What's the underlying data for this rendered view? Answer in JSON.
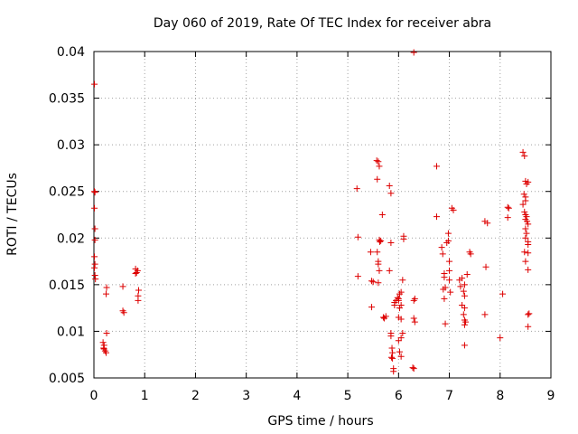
{
  "chart_data": {
    "type": "scatter",
    "title": "Day 060 of 2019, Rate Of TEC Index for receiver abra",
    "xlabel": "GPS time / hours",
    "ylabel": "ROTI / TECUs",
    "xlim": [
      0,
      9
    ],
    "ylim": [
      0.005,
      0.04
    ],
    "x_ticks": [
      0,
      1,
      2,
      3,
      4,
      5,
      6,
      7,
      8,
      9
    ],
    "y_ticks": [
      0.005,
      0.01,
      0.015,
      0.02,
      0.025,
      0.03,
      0.035,
      0.04
    ],
    "x_tick_labels": [
      "0",
      "1",
      "2",
      "3",
      "4",
      "5",
      "6",
      "7",
      "8",
      "9"
    ],
    "y_tick_labels": [
      "0.005",
      "0.01",
      "0.015",
      "0.02",
      "0.025",
      "0.03",
      "0.035",
      "0.04"
    ],
    "grid": true,
    "marker": "plus",
    "color": "#dd0000",
    "series": [
      {
        "name": "ROTI",
        "points": [
          [
            0.01,
            0.0365
          ],
          [
            0.01,
            0.025
          ],
          [
            0.02,
            0.0249
          ],
          [
            0.01,
            0.0232
          ],
          [
            0.02,
            0.021
          ],
          [
            0.02,
            0.0198
          ],
          [
            0.01,
            0.018
          ],
          [
            0.02,
            0.0172
          ],
          [
            0.01,
            0.0168
          ],
          [
            0.02,
            0.016
          ],
          [
            0.03,
            0.0156
          ],
          [
            0.18,
            0.0088
          ],
          [
            0.2,
            0.0085
          ],
          [
            0.19,
            0.0082
          ],
          [
            0.22,
            0.0079
          ],
          [
            0.24,
            0.0077
          ],
          [
            0.2,
            0.0081
          ],
          [
            0.25,
            0.0098
          ],
          [
            0.25,
            0.0147
          ],
          [
            0.24,
            0.014
          ],
          [
            0.57,
            0.0148
          ],
          [
            0.57,
            0.0122
          ],
          [
            0.59,
            0.012
          ],
          [
            0.82,
            0.0167
          ],
          [
            0.84,
            0.0163
          ],
          [
            0.86,
            0.0165
          ],
          [
            0.82,
            0.0162
          ],
          [
            0.88,
            0.0144
          ],
          [
            0.87,
            0.0138
          ],
          [
            0.87,
            0.0133
          ],
          [
            5.18,
            0.0253
          ],
          [
            5.2,
            0.0201
          ],
          [
            5.2,
            0.0159
          ],
          [
            5.45,
            0.0185
          ],
          [
            5.47,
            0.0154
          ],
          [
            5.5,
            0.0153
          ],
          [
            5.47,
            0.0126
          ],
          [
            5.57,
            0.0283
          ],
          [
            5.6,
            0.0282
          ],
          [
            5.62,
            0.0277
          ],
          [
            5.58,
            0.0263
          ],
          [
            5.58,
            0.0185
          ],
          [
            5.6,
            0.0175
          ],
          [
            5.62,
            0.0198
          ],
          [
            5.63,
            0.0196
          ],
          [
            5.65,
            0.0197
          ],
          [
            5.6,
            0.0172
          ],
          [
            5.62,
            0.0165
          ],
          [
            5.6,
            0.0152
          ],
          [
            5.68,
            0.0225
          ],
          [
            5.7,
            0.0115
          ],
          [
            5.72,
            0.0114
          ],
          [
            5.75,
            0.0116
          ],
          [
            5.82,
            0.0256
          ],
          [
            5.85,
            0.0248
          ],
          [
            5.85,
            0.0195
          ],
          [
            5.82,
            0.0165
          ],
          [
            5.85,
            0.0098
          ],
          [
            5.85,
            0.0095
          ],
          [
            5.87,
            0.0082
          ],
          [
            5.88,
            0.0077
          ],
          [
            5.86,
            0.0072
          ],
          [
            5.88,
            0.0071
          ],
          [
            5.9,
            0.006
          ],
          [
            5.9,
            0.0057
          ],
          [
            5.92,
            0.0128
          ],
          [
            5.92,
            0.0131
          ],
          [
            5.95,
            0.0133
          ],
          [
            5.98,
            0.0136
          ],
          [
            6.0,
            0.0133
          ],
          [
            6.0,
            0.0135
          ],
          [
            6.02,
            0.014
          ],
          [
            6.05,
            0.0142
          ],
          [
            6.05,
            0.0128
          ],
          [
            6.02,
            0.0125
          ],
          [
            6.0,
            0.0115
          ],
          [
            6.05,
            0.0113
          ],
          [
            6.08,
            0.0155
          ],
          [
            6.1,
            0.0202
          ],
          [
            6.1,
            0.0199
          ],
          [
            6.08,
            0.0098
          ],
          [
            6.05,
            0.0093
          ],
          [
            6.0,
            0.009
          ],
          [
            6.02,
            0.0078
          ],
          [
            6.05,
            0.0073
          ],
          [
            6.3,
            0.0399
          ],
          [
            6.3,
            0.0133
          ],
          [
            6.32,
            0.0135
          ],
          [
            6.3,
            0.0114
          ],
          [
            6.32,
            0.011
          ],
          [
            6.28,
            0.0061
          ],
          [
            6.3,
            0.006
          ],
          [
            6.75,
            0.0277
          ],
          [
            6.75,
            0.0223
          ],
          [
            6.85,
            0.019
          ],
          [
            6.87,
            0.0183
          ],
          [
            6.9,
            0.0162
          ],
          [
            6.9,
            0.0158
          ],
          [
            6.92,
            0.0147
          ],
          [
            6.88,
            0.0145
          ],
          [
            6.9,
            0.0135
          ],
          [
            6.92,
            0.0108
          ],
          [
            6.95,
            0.0195
          ],
          [
            6.98,
            0.0205
          ],
          [
            6.98,
            0.0197
          ],
          [
            7.0,
            0.0175
          ],
          [
            7.0,
            0.0165
          ],
          [
            7.0,
            0.0155
          ],
          [
            7.02,
            0.0142
          ],
          [
            7.05,
            0.0232
          ],
          [
            7.08,
            0.023
          ],
          [
            7.2,
            0.0155
          ],
          [
            7.25,
            0.0157
          ],
          [
            7.22,
            0.0148
          ],
          [
            7.3,
            0.015
          ],
          [
            7.28,
            0.0143
          ],
          [
            7.3,
            0.0138
          ],
          [
            7.25,
            0.0128
          ],
          [
            7.3,
            0.0125
          ],
          [
            7.28,
            0.0118
          ],
          [
            7.3,
            0.0112
          ],
          [
            7.32,
            0.011
          ],
          [
            7.3,
            0.0107
          ],
          [
            7.3,
            0.0085
          ],
          [
            7.4,
            0.0185
          ],
          [
            7.42,
            0.0183
          ],
          [
            7.35,
            0.0161
          ],
          [
            7.7,
            0.0218
          ],
          [
            7.75,
            0.0216
          ],
          [
            7.72,
            0.0169
          ],
          [
            7.7,
            0.0118
          ],
          [
            8.0,
            0.0093
          ],
          [
            8.05,
            0.014
          ],
          [
            8.15,
            0.0233
          ],
          [
            8.17,
            0.0232
          ],
          [
            8.15,
            0.0222
          ],
          [
            8.45,
            0.0292
          ],
          [
            8.48,
            0.0288
          ],
          [
            8.5,
            0.0261
          ],
          [
            8.52,
            0.0258
          ],
          [
            8.55,
            0.026
          ],
          [
            8.47,
            0.0247
          ],
          [
            8.5,
            0.0244
          ],
          [
            8.5,
            0.024
          ],
          [
            8.45,
            0.0236
          ],
          [
            8.48,
            0.0228
          ],
          [
            8.5,
            0.0225
          ],
          [
            8.52,
            0.0223
          ],
          [
            8.5,
            0.022
          ],
          [
            8.53,
            0.0218
          ],
          [
            8.55,
            0.0215
          ],
          [
            8.5,
            0.021
          ],
          [
            8.52,
            0.0205
          ],
          [
            8.5,
            0.02
          ],
          [
            8.55,
            0.0196
          ],
          [
            8.55,
            0.0193
          ],
          [
            8.48,
            0.0185
          ],
          [
            8.55,
            0.0184
          ],
          [
            8.5,
            0.0175
          ],
          [
            8.55,
            0.0166
          ],
          [
            8.57,
            0.0119
          ],
          [
            8.55,
            0.0118
          ],
          [
            8.55,
            0.0105
          ]
        ]
      }
    ]
  }
}
